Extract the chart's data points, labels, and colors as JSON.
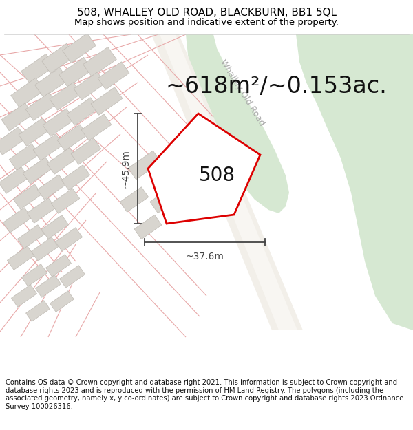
{
  "title_line1": "508, WHALLEY OLD ROAD, BLACKBURN, BB1 5QL",
  "title_line2": "Map shows position and indicative extent of the property.",
  "area_text": "~618m²/~0.153ac.",
  "label_508": "508",
  "dim_vertical": "~45.9m",
  "dim_horizontal": "~37.6m",
  "road_label": "Whalley Old Road",
  "footer": "Contains OS data © Crown copyright and database right 2021. This information is subject to Crown copyright and database rights 2023 and is reproduced with the permission of HM Land Registry. The polygons (including the associated geometry, namely x, y co-ordinates) are subject to Crown copyright and database rights 2023 Ordnance Survey 100026316.",
  "bg_color": "#ffffff",
  "map_bg": "#f9f8f6",
  "plot_color_fill": "#ffffff",
  "plot_color_edge": "#dd0000",
  "green_area_color": "#d6e8d2",
  "building_fill": "#d8d5cf",
  "building_edge": "#c0bbb4",
  "pink_line_color": "#e8a8a8",
  "dim_line_color": "#444444",
  "road_label_color": "#aaaaaa",
  "title_fontsize": 11,
  "subtitle_fontsize": 9.5,
  "area_fontsize": 24,
  "label_fontsize": 20,
  "dim_fontsize": 10,
  "footer_fontsize": 7.2
}
